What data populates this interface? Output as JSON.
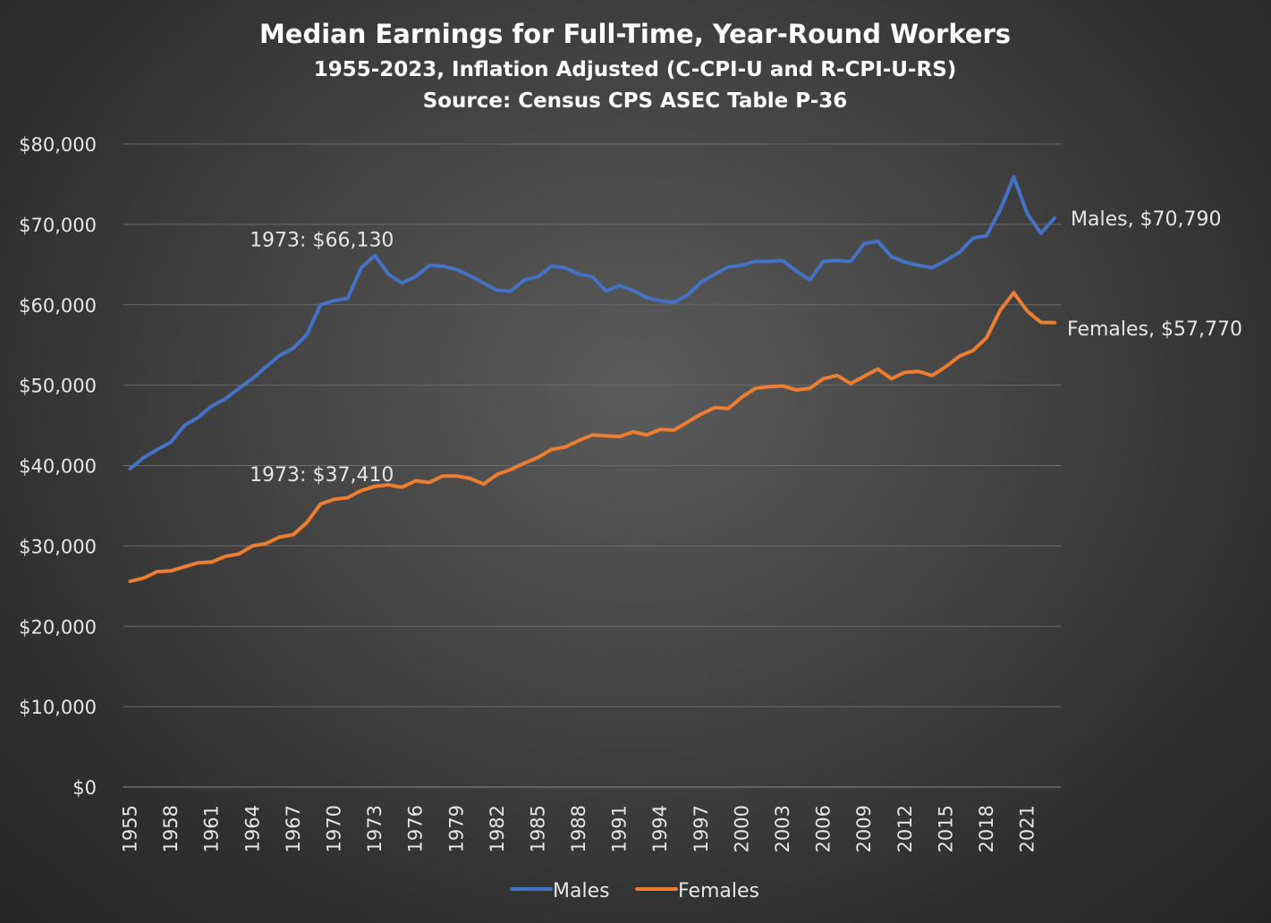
{
  "chart_data": {
    "type": "line",
    "title": "Median Earnings for Full-Time, Year-Round Workers",
    "subtitle": "1955-2023, Inflation Adjusted (C-CPI-U and R-CPI-U-RS)",
    "source": "Source: Census CPS ASEC Table P-36",
    "ylim": [
      0,
      80000
    ],
    "y_ticks": [
      0,
      10000,
      20000,
      30000,
      40000,
      50000,
      60000,
      70000,
      80000
    ],
    "y_tick_labels": [
      "$0",
      "$10,000",
      "$20,000",
      "$30,000",
      "$40,000",
      "$50,000",
      "$60,000",
      "$70,000",
      "$80,000"
    ],
    "x_tick_labels": [
      "1955",
      "1958",
      "1961",
      "1964",
      "1967",
      "1970",
      "1973",
      "1976",
      "1979",
      "1982",
      "1985",
      "1988",
      "1991",
      "1994",
      "1997",
      "2000",
      "2003",
      "2006",
      "2009",
      "2012",
      "2015",
      "2018",
      "2021"
    ],
    "grid": "horizontal",
    "legend_position": "bottom",
    "x": [
      1955,
      1956,
      1957,
      1958,
      1959,
      1960,
      1961,
      1962,
      1963,
      1964,
      1965,
      1966,
      1967,
      1968,
      1969,
      1970,
      1971,
      1972,
      1973,
      1974,
      1975,
      1976,
      1977,
      1978,
      1979,
      1980,
      1981,
      1982,
      1983,
      1984,
      1985,
      1986,
      1987,
      1988,
      1989,
      1990,
      1991,
      1992,
      1993,
      1994,
      1995,
      1996,
      1997,
      1998,
      1999,
      2000,
      2001,
      2002,
      2003,
      2004,
      2005,
      2006,
      2007,
      2008,
      2009,
      2010,
      2011,
      2012,
      2013,
      2014,
      2015,
      2016,
      2017,
      2018,
      2019,
      2020,
      2021,
      2022,
      2023
    ],
    "series": [
      {
        "name": "Males",
        "color": "#4472c4",
        "values": [
          39600,
          41000,
          42000,
          42900,
          45000,
          46000,
          47400,
          48300,
          49600,
          50800,
          52300,
          53700,
          54600,
          56300,
          60000,
          60500,
          60800,
          64600,
          66130,
          63800,
          62700,
          63500,
          64900,
          64800,
          64400,
          63600,
          62700,
          61800,
          61700,
          63100,
          63500,
          64800,
          64600,
          63800,
          63500,
          61700,
          62400,
          61800,
          60900,
          60500,
          60300,
          61200,
          62800,
          63800,
          64700,
          64900,
          65400,
          65400,
          65500,
          64200,
          63100,
          65400,
          65500,
          65400,
          67600,
          67900,
          66000,
          65300,
          64900,
          64600,
          65500,
          66500,
          68300,
          68600,
          71800,
          75900,
          71300,
          68900,
          70790
        ]
      },
      {
        "name": "Females",
        "color": "#ed7d31",
        "values": [
          25600,
          26000,
          26800,
          26900,
          27400,
          27900,
          28000,
          28700,
          29000,
          30000,
          30300,
          31100,
          31400,
          32900,
          35200,
          35800,
          36000,
          36900,
          37410,
          37600,
          37300,
          38100,
          37900,
          38700,
          38700,
          38400,
          37700,
          38900,
          39500,
          40300,
          41000,
          42000,
          42300,
          43100,
          43800,
          43700,
          43600,
          44200,
          43800,
          44500,
          44400,
          45400,
          46400,
          47200,
          47100,
          48500,
          49600,
          49800,
          49900,
          49400,
          49600,
          50800,
          51200,
          50200,
          51100,
          52000,
          50800,
          51600,
          51700,
          51200,
          52300,
          53600,
          54300,
          55900,
          59300,
          61500,
          59200,
          57800,
          57770
        ]
      }
    ],
    "annotations": [
      {
        "text": "1973: $66,130",
        "x": 1973,
        "y": 66130
      },
      {
        "text": "1973: $37,410",
        "x": 1973,
        "y": 37410
      },
      {
        "text": "Males, $70,790",
        "x": 2023,
        "y": 70790
      },
      {
        "text": "Females, $57,770",
        "x": 2023,
        "y": 57770
      }
    ]
  }
}
